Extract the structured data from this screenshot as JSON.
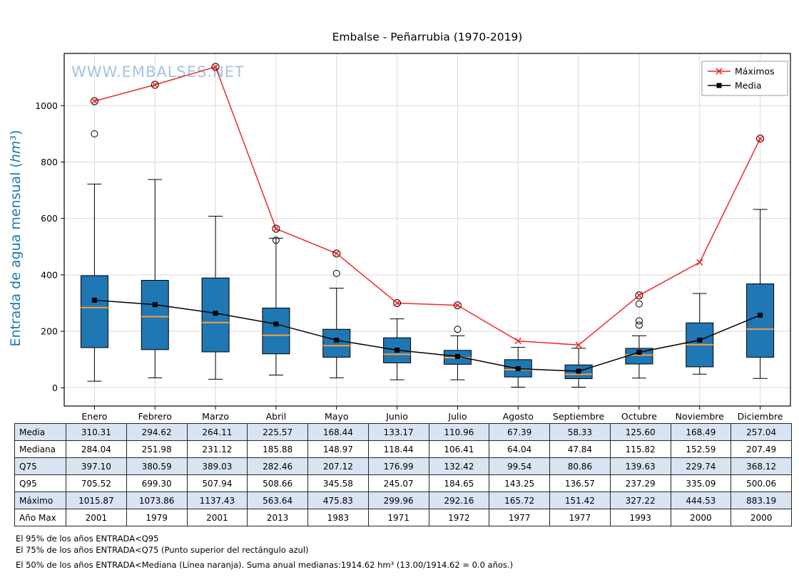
{
  "title": "Embalse - Peñarrubia (1970-2019)",
  "watermark": "WWW.EMBALSES.NET",
  "chart_data": {
    "type": "boxplot+lines",
    "title": "Embalse - Peñarrubia (1970-2019)",
    "ylabel": "Entrada de agua mensual (hm³)",
    "categories": [
      "Enero",
      "Febrero",
      "Marzo",
      "Abril",
      "Mayo",
      "Junio",
      "Julio",
      "Agosto",
      "Septiembre",
      "Octubre",
      "Noviembre",
      "Diciembre"
    ],
    "ylim": [
      -65,
      1185
    ],
    "yticks": [
      0,
      200,
      400,
      600,
      800,
      1000
    ],
    "grid": true,
    "legend_position": "top-right",
    "colors": {
      "box_fill": "#1f77b4",
      "box_edge": "#000000",
      "median_line": "#ff9c33",
      "maximos_line": "#ef2929",
      "media_line": "#000000",
      "grid": "#d9d9d9",
      "watermark": "#a5c4dc",
      "ylabel": "#1f77b4",
      "table_shade": "#d9e4f2"
    },
    "box": {
      "q25": [
        142,
        135,
        127,
        120,
        108,
        88,
        83,
        38,
        32,
        84,
        74,
        108
      ],
      "median": [
        284.04,
        251.98,
        231.12,
        185.88,
        148.97,
        118.44,
        106.41,
        64.04,
        47.84,
        115.82,
        152.59,
        207.49
      ],
      "q75": [
        397.1,
        380.59,
        389.03,
        282.46,
        207.12,
        176.99,
        132.42,
        99.54,
        80.86,
        139.63,
        229.74,
        368.12
      ],
      "whisker_low": [
        23,
        35,
        30,
        45,
        35,
        28,
        28,
        2,
        2,
        34,
        48,
        33
      ],
      "whisker_high": [
        722,
        738,
        608,
        530,
        353,
        244,
        184,
        143,
        140,
        184,
        334,
        632
      ],
      "outliers": [
        [
          900
        ],
        [],
        [],
        [
          523
        ],
        [
          405
        ],
        [],
        [
          207
        ],
        [],
        [],
        [
          222,
          237,
          297
        ],
        [],
        []
      ]
    },
    "series": [
      {
        "name": "Máximos",
        "marker": "x",
        "color": "#ef2929",
        "values": [
          1015.87,
          1073.86,
          1137.43,
          563.64,
          475.83,
          299.96,
          292.16,
          165.72,
          151.42,
          327.22,
          444.53,
          883.19
        ],
        "outlier_circles": [
          true,
          true,
          true,
          true,
          true,
          true,
          true,
          false,
          false,
          true,
          false,
          true
        ]
      },
      {
        "name": "Media",
        "marker": "square",
        "color": "#000000",
        "values": [
          310.31,
          294.62,
          264.11,
          225.57,
          168.44,
          133.17,
          110.96,
          67.39,
          58.33,
          125.6,
          168.49,
          257.04
        ]
      }
    ]
  },
  "table": {
    "columns": [
      "Enero",
      "Febrero",
      "Marzo",
      "Abril",
      "Mayo",
      "Junio",
      "Julio",
      "Agosto",
      "Septiembre",
      "Octubre",
      "Noviembre",
      "Diciembre"
    ],
    "rows": [
      {
        "label": "Media",
        "values": [
          "310.31",
          "294.62",
          "264.11",
          "225.57",
          "168.44",
          "133.17",
          "110.96",
          "67.39",
          "58.33",
          "125.60",
          "168.49",
          "257.04"
        ]
      },
      {
        "label": "Mediana",
        "values": [
          "284.04",
          "251.98",
          "231.12",
          "185.88",
          "148.97",
          "118.44",
          "106.41",
          "64.04",
          "47.84",
          "115.82",
          "152.59",
          "207.49"
        ]
      },
      {
        "label": "Q75",
        "values": [
          "397.10",
          "380.59",
          "389.03",
          "282.46",
          "207.12",
          "176.99",
          "132.42",
          "99.54",
          "80.86",
          "139.63",
          "229.74",
          "368.12"
        ]
      },
      {
        "label": "Q95",
        "values": [
          "705.52",
          "699.30",
          "507.94",
          "508.66",
          "345.58",
          "245.07",
          "184.65",
          "143.25",
          "136.57",
          "237.29",
          "335.09",
          "500.06"
        ]
      },
      {
        "label": "Máximo",
        "values": [
          "1015.87",
          "1073.86",
          "1137.43",
          "563.64",
          "475.83",
          "299.96",
          "292.16",
          "165.72",
          "151.42",
          "327.22",
          "444.53",
          "883.19"
        ]
      },
      {
        "label": "Año Max",
        "values": [
          "2001",
          "1979",
          "2001",
          "2013",
          "1983",
          "1971",
          "1972",
          "1977",
          "1977",
          "1993",
          "2000",
          "2000"
        ]
      }
    ]
  },
  "footnotes": [
    "El 95% de los años ENTRADA<Q95",
    "El 75% de los años ENTRADA<Q75 (Punto superior del rectángulo azul)",
    "El 50% de los años ENTRADA<Mediana (Línea naranja). Suma anual medianas:1914.62 hm³ (13.00/1914.62 = 0.0 años.)"
  ]
}
